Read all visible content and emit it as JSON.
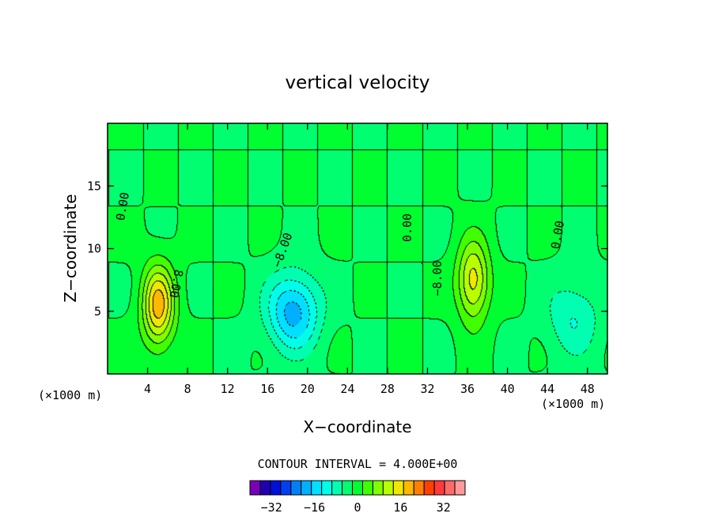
{
  "chart_data": {
    "type": "heatmap",
    "title": "vertical velocity",
    "xlabel": "X−coordinate",
    "ylabel": "Z−coordinate",
    "x_unit_left": "(×1000 m)",
    "x_unit_right": "(×1000 m)",
    "xlim": [
      0,
      50
    ],
    "ylim": [
      0,
      20
    ],
    "x_ticks": [
      4,
      8,
      12,
      16,
      20,
      24,
      28,
      32,
      36,
      40,
      44,
      48
    ],
    "y_ticks": [
      5,
      10,
      15
    ],
    "contour_interval_label": "CONTOUR INTERVAL = 4.000E+00",
    "contour_labels": [
      "0.00",
      "8.00",
      "−8.00",
      "0.00",
      "−8.00",
      "0.00"
    ],
    "colorbar": {
      "levels": [
        -40,
        -36,
        -32,
        -28,
        -24,
        -20,
        -16,
        -12,
        -8,
        -4,
        0,
        4,
        8,
        12,
        16,
        20,
        24,
        28,
        32,
        36,
        40
      ],
      "tick_values": [
        -32,
        -16,
        0,
        16,
        32
      ],
      "tick_labels": [
        "−32",
        "−16",
        "0",
        "16",
        "32"
      ],
      "colors": [
        "#7a00b8",
        "#2000b0",
        "#0010d8",
        "#0040f0",
        "#0080f8",
        "#00b0ff",
        "#00e0ff",
        "#00ffe8",
        "#00ffb0",
        "#00ff70",
        "#00ff30",
        "#40ff00",
        "#80ff00",
        "#b8ff00",
        "#f0e800",
        "#ffb800",
        "#ff8000",
        "#ff4000",
        "#ff3a3a",
        "#ff6a6a",
        "#ff9a9a"
      ]
    },
    "features": [
      {
        "kind": "updraft",
        "x": 5,
        "z": 5.5,
        "peak": 22
      },
      {
        "kind": "downdraft",
        "x": 18.5,
        "z": 5,
        "peak": -18
      },
      {
        "kind": "updraft",
        "x": 36.5,
        "z": 7.5,
        "peak": 18
      },
      {
        "kind": "downdraft",
        "x": 46.5,
        "z": 4.5,
        "peak": -8
      }
    ],
    "background_value": 0
  }
}
